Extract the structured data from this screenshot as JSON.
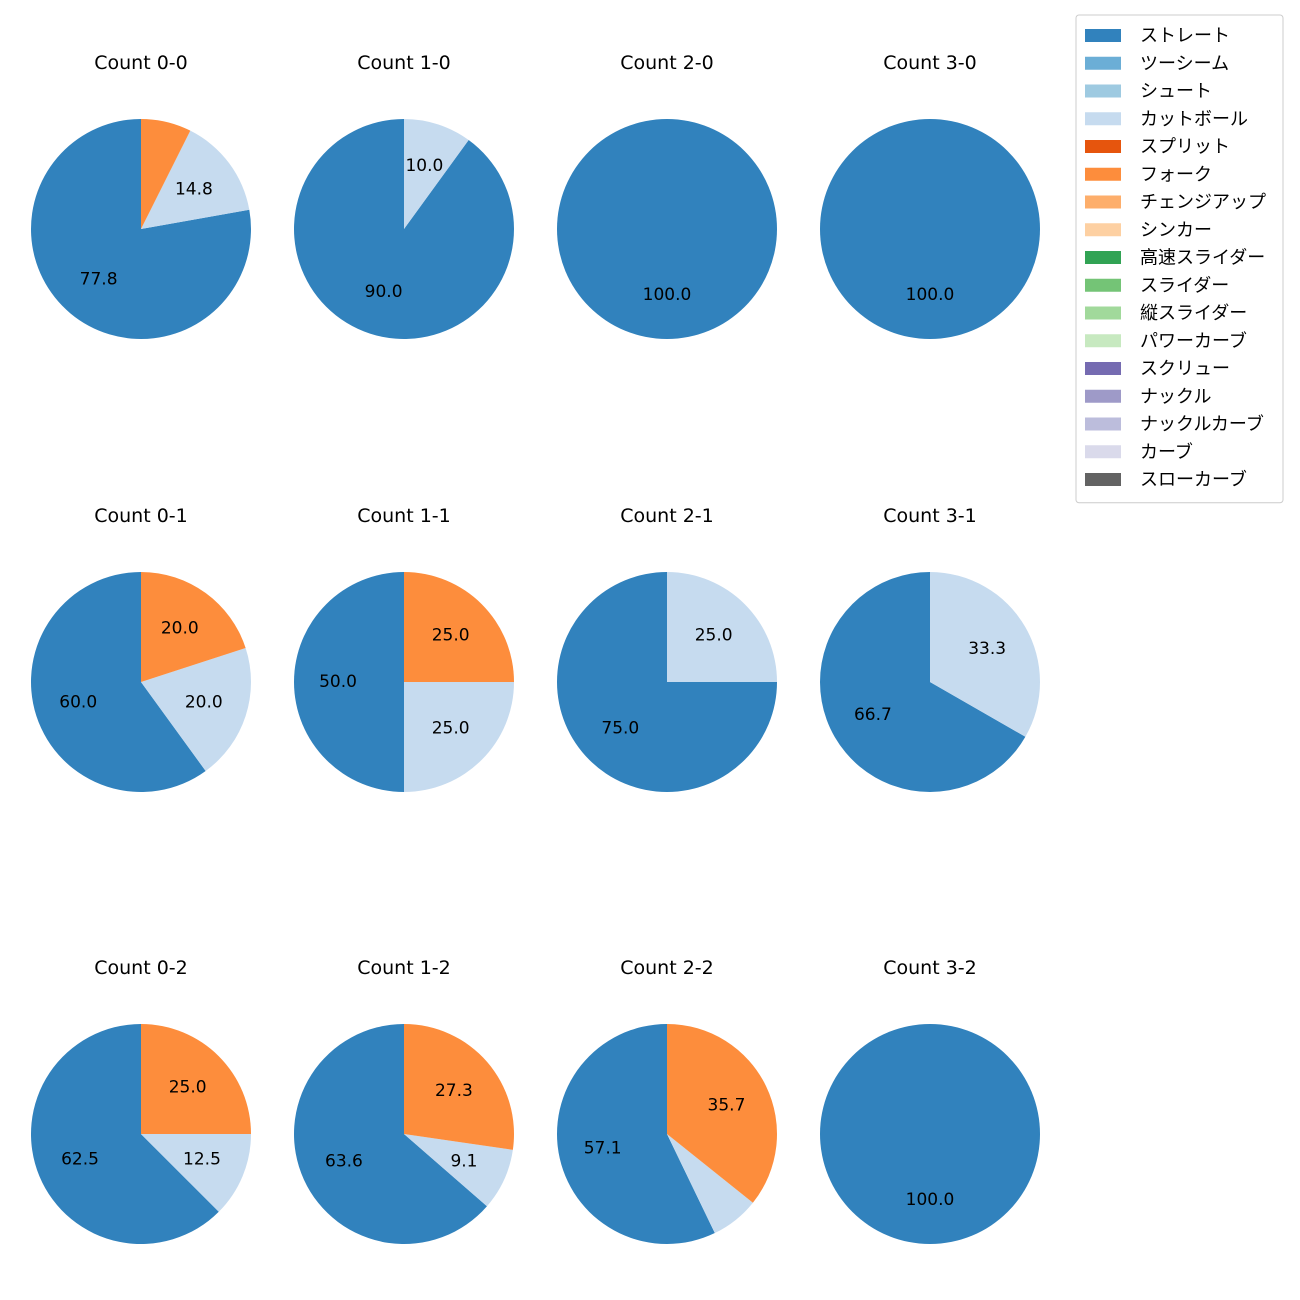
{
  "chart_data": {
    "type": "pie",
    "categories": [
      "ストレート",
      "ツーシーム",
      "シュート",
      "カットボール",
      "スプリット",
      "フォーク",
      "チェンジアップ",
      "シンカー",
      "高速スライダー",
      "スライダー",
      "縦スライダー",
      "パワーカーブ",
      "スクリュー",
      "ナックル",
      "ナックルカーブ",
      "カーブ",
      "スローカーブ"
    ],
    "colors": [
      "#3182bd",
      "#6baed6",
      "#9ecae1",
      "#c6dbef",
      "#e6550d",
      "#fd8d3c",
      "#fdae6b",
      "#fdd0a2",
      "#31a354",
      "#74c476",
      "#a1d99b",
      "#c7e9c0",
      "#756bb1",
      "#9e9ac8",
      "#bcbddc",
      "#dadaeb",
      "#636363"
    ],
    "legend_position": "top-right",
    "panels": [
      {
        "title": "Count 0-0",
        "slices": [
          {
            "category": "ストレート",
            "value": 77.8,
            "label": "77.8"
          },
          {
            "category": "カットボール",
            "value": 14.8,
            "label": "14.8"
          },
          {
            "category": "フォーク",
            "value": 7.4,
            "label": ""
          }
        ]
      },
      {
        "title": "Count 1-0",
        "slices": [
          {
            "category": "ストレート",
            "value": 90.0,
            "label": "90.0"
          },
          {
            "category": "カットボール",
            "value": 10.0,
            "label": "10.0"
          }
        ]
      },
      {
        "title": "Count 2-0",
        "slices": [
          {
            "category": "ストレート",
            "value": 100.0,
            "label": "100.0"
          }
        ]
      },
      {
        "title": "Count 3-0",
        "slices": [
          {
            "category": "ストレート",
            "value": 100.0,
            "label": "100.0"
          }
        ]
      },
      {
        "title": "Count 0-1",
        "slices": [
          {
            "category": "ストレート",
            "value": 60.0,
            "label": "60.0"
          },
          {
            "category": "カットボール",
            "value": 20.0,
            "label": "20.0"
          },
          {
            "category": "フォーク",
            "value": 20.0,
            "label": "20.0"
          }
        ]
      },
      {
        "title": "Count 1-1",
        "slices": [
          {
            "category": "ストレート",
            "value": 50.0,
            "label": "50.0"
          },
          {
            "category": "カットボール",
            "value": 25.0,
            "label": "25.0"
          },
          {
            "category": "フォーク",
            "value": 25.0,
            "label": "25.0"
          }
        ]
      },
      {
        "title": "Count 2-1",
        "slices": [
          {
            "category": "ストレート",
            "value": 75.0,
            "label": "75.0"
          },
          {
            "category": "カットボール",
            "value": 25.0,
            "label": "25.0"
          }
        ]
      },
      {
        "title": "Count 3-1",
        "slices": [
          {
            "category": "ストレート",
            "value": 66.7,
            "label": "66.7"
          },
          {
            "category": "カットボール",
            "value": 33.3,
            "label": "33.3"
          }
        ]
      },
      {
        "title": "Count 0-2",
        "slices": [
          {
            "category": "ストレート",
            "value": 62.5,
            "label": "62.5"
          },
          {
            "category": "カットボール",
            "value": 12.5,
            "label": "12.5"
          },
          {
            "category": "フォーク",
            "value": 25.0,
            "label": "25.0"
          }
        ]
      },
      {
        "title": "Count 1-2",
        "slices": [
          {
            "category": "ストレート",
            "value": 63.6,
            "label": "63.6"
          },
          {
            "category": "カットボール",
            "value": 9.1,
            "label": "9.1"
          },
          {
            "category": "フォーク",
            "value": 27.3,
            "label": "27.3"
          }
        ]
      },
      {
        "title": "Count 2-2",
        "slices": [
          {
            "category": "ストレート",
            "value": 57.1,
            "label": "57.1"
          },
          {
            "category": "カットボール",
            "value": 7.1,
            "label": ""
          },
          {
            "category": "フォーク",
            "value": 35.7,
            "label": "35.7"
          }
        ]
      },
      {
        "title": "Count 3-2",
        "slices": [
          {
            "category": "ストレート",
            "value": 100.0,
            "label": "100.0"
          }
        ]
      }
    ]
  }
}
